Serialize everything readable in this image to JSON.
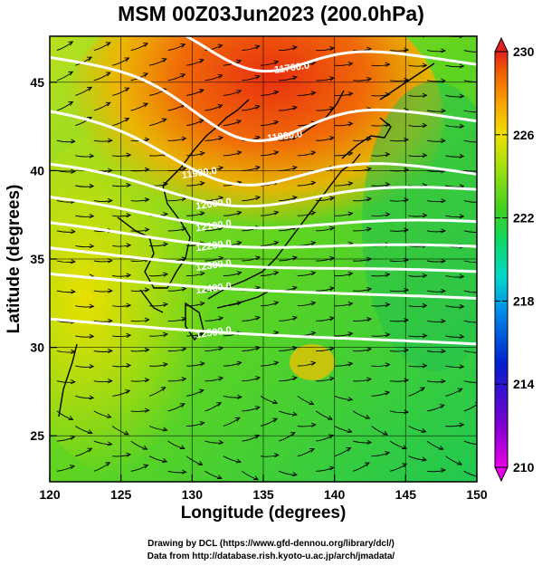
{
  "title": "MSM 00Z03Jun2023 (200.0hPa)",
  "x_axis": {
    "label": "Longitude (degrees)",
    "range": [
      120,
      150
    ],
    "ticks": [
      "120",
      "125",
      "130",
      "135",
      "140",
      "145",
      "150"
    ]
  },
  "y_axis": {
    "label": "Latitude  (degrees)",
    "range": [
      22.4,
      47.6
    ],
    "ticks": [
      "25",
      "30",
      "35",
      "40",
      "45"
    ]
  },
  "colorbar": {
    "range": [
      210,
      230
    ],
    "ticks": [
      "230",
      "226",
      "222",
      "218",
      "214",
      "210"
    ],
    "colors": [
      "#e800e8",
      "#7000c8",
      "#0020d0",
      "#0090e8",
      "#00d8c8",
      "#10d860",
      "#40d020",
      "#a0e010",
      "#f0e000",
      "#f8a000",
      "#f06000",
      "#e02020"
    ]
  },
  "contours": [
    {
      "label": "11700.0"
    },
    {
      "label": "11800.0"
    },
    {
      "label": "11900.0"
    },
    {
      "label": "12000.0"
    },
    {
      "label": "12100.0"
    },
    {
      "label": "12200.0"
    },
    {
      "label": "12300.0"
    },
    {
      "label": "12400.0"
    },
    {
      "label": "12500.0"
    }
  ],
  "credits": {
    "line1": "Drawing by DCL (https://www.gfd-dennou.org/library/dcl/)",
    "line2": "Data from http://database.rish.kyoto-u.ac.jp/arch/jmadata/"
  }
}
